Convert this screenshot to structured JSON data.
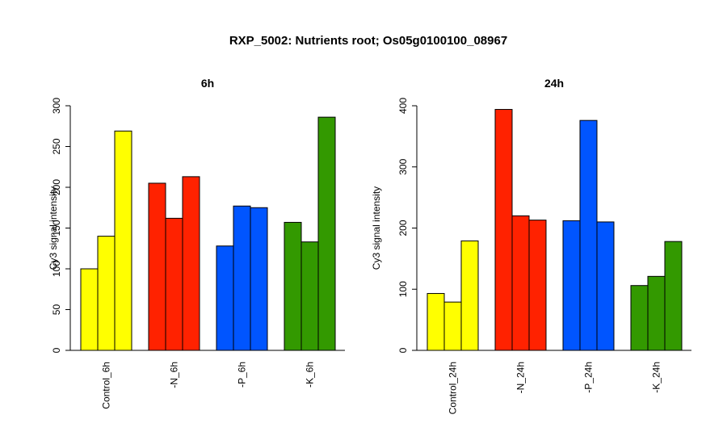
{
  "figure_title": "RXP_5002: Nutrients root; Os05g0100100_08967",
  "chart_data": [
    {
      "type": "bar",
      "title": "6h",
      "ylabel": "Cy3 signal intensity",
      "xlabel": "",
      "ylim": [
        0,
        300
      ],
      "yticks": [
        0,
        50,
        100,
        150,
        200,
        250,
        300
      ],
      "groups": [
        {
          "label": "Control_6h",
          "color": "#ffff00",
          "values": [
            100,
            140,
            269
          ]
        },
        {
          "label": "-N_6h",
          "color": "#ff2200",
          "values": [
            205,
            162,
            213
          ]
        },
        {
          "label": "-P_6h",
          "color": "#0055ff",
          "values": [
            128,
            177,
            175
          ]
        },
        {
          "label": "-K_6h",
          "color": "#339900",
          "values": [
            157,
            133,
            286
          ]
        }
      ]
    },
    {
      "type": "bar",
      "title": "24h",
      "ylabel": "Cy3 signal intensity",
      "xlabel": "",
      "ylim": [
        0,
        400
      ],
      "yticks": [
        0,
        100,
        200,
        300,
        400
      ],
      "groups": [
        {
          "label": "Control_24h",
          "color": "#ffff00",
          "values": [
            93,
            79,
            179
          ]
        },
        {
          "label": "-N_24h",
          "color": "#ff2200",
          "values": [
            394,
            220,
            213
          ]
        },
        {
          "label": "-P_24h",
          "color": "#0055ff",
          "values": [
            212,
            376,
            210
          ]
        },
        {
          "label": "-K_24h",
          "color": "#339900",
          "values": [
            106,
            121,
            178
          ]
        }
      ]
    }
  ]
}
